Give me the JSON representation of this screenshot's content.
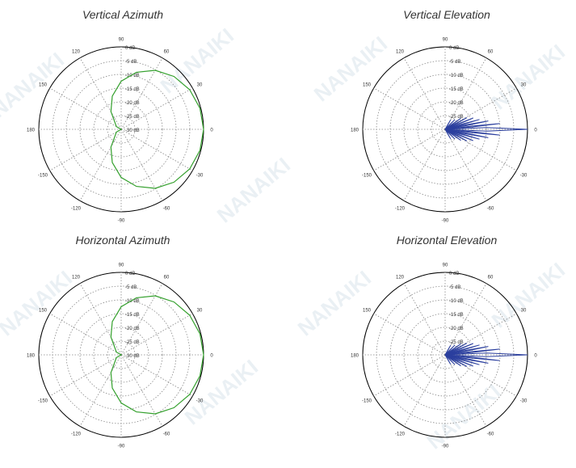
{
  "watermark_text": "NANAIKI",
  "colors": {
    "azimuth_pattern": "#33a02c",
    "elevation_pattern": "#2b3f9e",
    "grid": "#888888",
    "outline": "#000000"
  },
  "chart_data": [
    {
      "type": "polar-line",
      "title": "Vertical Azimuth",
      "radial_unit": "dB",
      "radial_range": [
        -30,
        0
      ],
      "radial_ticks": [
        "0 dB",
        "-5 dB",
        "-10 dB",
        "-15 dB",
        "-20 dB",
        "-25 dB",
        "-30 dB"
      ],
      "angle_ticks": [
        "0",
        "30",
        "60",
        "90",
        "120",
        "150",
        "180",
        "-150",
        "-120",
        "-90",
        "-60",
        "-30"
      ],
      "series": [
        {
          "angles_deg": [
            0,
            15,
            30,
            45,
            60,
            75,
            90,
            105,
            120,
            150,
            180,
            -150,
            -120,
            -105,
            -90,
            -75,
            -60,
            -45,
            -30,
            -15
          ],
          "gain_db": [
            0,
            -0.3,
            -1.2,
            -2.8,
            -5.2,
            -8.5,
            -12.5,
            -17.5,
            -22.5,
            -28,
            -30,
            -28,
            -22.5,
            -17.5,
            -12.5,
            -8.5,
            -5.2,
            -2.8,
            -1.2,
            -0.3
          ]
        }
      ]
    },
    {
      "type": "polar-line",
      "title": "Vertical Elevation",
      "radial_unit": "dB",
      "radial_range": [
        -30,
        0
      ],
      "radial_ticks": [
        "0 dB",
        "-5 dB",
        "-10 dB",
        "-15 dB",
        "-20 dB",
        "-25 dB"
      ],
      "angle_ticks": [
        "0",
        "30",
        "60",
        "90",
        "120",
        "150",
        "180",
        "-150",
        "-120",
        "-90",
        "-60",
        "-30"
      ],
      "series": [
        {
          "lobes": [
            {
              "angle_deg": 0,
              "gain_db": 0,
              "width_deg": 5
            },
            {
              "angle_deg": 6,
              "gain_db": -10,
              "width_deg": 2
            },
            {
              "angle_deg": -6,
              "gain_db": -10,
              "width_deg": 2
            },
            {
              "angle_deg": 11,
              "gain_db": -14,
              "width_deg": 2
            },
            {
              "angle_deg": -11,
              "gain_db": -14,
              "width_deg": 2
            },
            {
              "angle_deg": 16,
              "gain_db": -17,
              "width_deg": 2
            },
            {
              "angle_deg": -16,
              "gain_db": -17,
              "width_deg": 2
            },
            {
              "angle_deg": 22,
              "gain_db": -19,
              "width_deg": 2
            },
            {
              "angle_deg": -22,
              "gain_db": -19,
              "width_deg": 2
            },
            {
              "angle_deg": 28,
              "gain_db": -21,
              "width_deg": 2
            },
            {
              "angle_deg": -28,
              "gain_db": -21,
              "width_deg": 2
            },
            {
              "angle_deg": 35,
              "gain_db": -23,
              "width_deg": 2
            },
            {
              "angle_deg": -35,
              "gain_db": -23,
              "width_deg": 2
            },
            {
              "angle_deg": 45,
              "gain_db": -25,
              "width_deg": 2
            },
            {
              "angle_deg": -45,
              "gain_db": -25,
              "width_deg": 2
            },
            {
              "angle_deg": 60,
              "gain_db": -26,
              "width_deg": 2
            },
            {
              "angle_deg": -60,
              "gain_db": -26,
              "width_deg": 2
            }
          ]
        }
      ]
    },
    {
      "type": "polar-line",
      "title": "Horizontal Azimuth",
      "radial_unit": "dB",
      "radial_range": [
        -30,
        0
      ],
      "radial_ticks": [
        "0 dB",
        "-5 dB",
        "-10 dB",
        "-15 dB",
        "-20 dB",
        "-25 dB",
        "-30 dB"
      ],
      "angle_ticks": [
        "0",
        "30",
        "60",
        "90",
        "120",
        "150",
        "180",
        "-150",
        "-120",
        "-90",
        "-60",
        "-30"
      ],
      "series": [
        {
          "angles_deg": [
            0,
            15,
            30,
            45,
            60,
            75,
            90,
            105,
            120,
            150,
            180,
            -150,
            -120,
            -105,
            -90,
            -75,
            -60,
            -45,
            -30,
            -15
          ],
          "gain_db": [
            0,
            -0.3,
            -1.2,
            -2.8,
            -5.2,
            -8.5,
            -12.5,
            -17.5,
            -22.5,
            -28,
            -30,
            -28,
            -22.5,
            -17.5,
            -12.5,
            -8.5,
            -5.2,
            -2.8,
            -1.2,
            -0.3
          ]
        }
      ]
    },
    {
      "type": "polar-line",
      "title": "Horizontal Elevation",
      "radial_unit": "dB",
      "radial_range": [
        -30,
        0
      ],
      "radial_ticks": [
        "0 dB",
        "-5 dB",
        "-10 dB",
        "-15 dB",
        "-20 dB",
        "-25 dB"
      ],
      "angle_ticks": [
        "0",
        "30",
        "60",
        "90",
        "120",
        "150",
        "180",
        "-150",
        "-120",
        "-90",
        "-60",
        "-30"
      ],
      "series": [
        {
          "lobes": [
            {
              "angle_deg": 0,
              "gain_db": 0,
              "width_deg": 5
            },
            {
              "angle_deg": 6,
              "gain_db": -10,
              "width_deg": 2
            },
            {
              "angle_deg": -6,
              "gain_db": -10,
              "width_deg": 2
            },
            {
              "angle_deg": 11,
              "gain_db": -14,
              "width_deg": 2
            },
            {
              "angle_deg": -11,
              "gain_db": -14,
              "width_deg": 2
            },
            {
              "angle_deg": 16,
              "gain_db": -17,
              "width_deg": 2
            },
            {
              "angle_deg": -16,
              "gain_db": -17,
              "width_deg": 2
            },
            {
              "angle_deg": 22,
              "gain_db": -19,
              "width_deg": 2
            },
            {
              "angle_deg": -22,
              "gain_db": -19,
              "width_deg": 2
            },
            {
              "angle_deg": 28,
              "gain_db": -21,
              "width_deg": 2
            },
            {
              "angle_deg": -28,
              "gain_db": -21,
              "width_deg": 2
            },
            {
              "angle_deg": 35,
              "gain_db": -23,
              "width_deg": 2
            },
            {
              "angle_deg": -35,
              "gain_db": -23,
              "width_deg": 2
            },
            {
              "angle_deg": 45,
              "gain_db": -25,
              "width_deg": 2
            },
            {
              "angle_deg": -45,
              "gain_db": -25,
              "width_deg": 2
            },
            {
              "angle_deg": 60,
              "gain_db": -26,
              "width_deg": 2
            },
            {
              "angle_deg": -60,
              "gain_db": -26,
              "width_deg": 2
            }
          ]
        }
      ]
    }
  ]
}
